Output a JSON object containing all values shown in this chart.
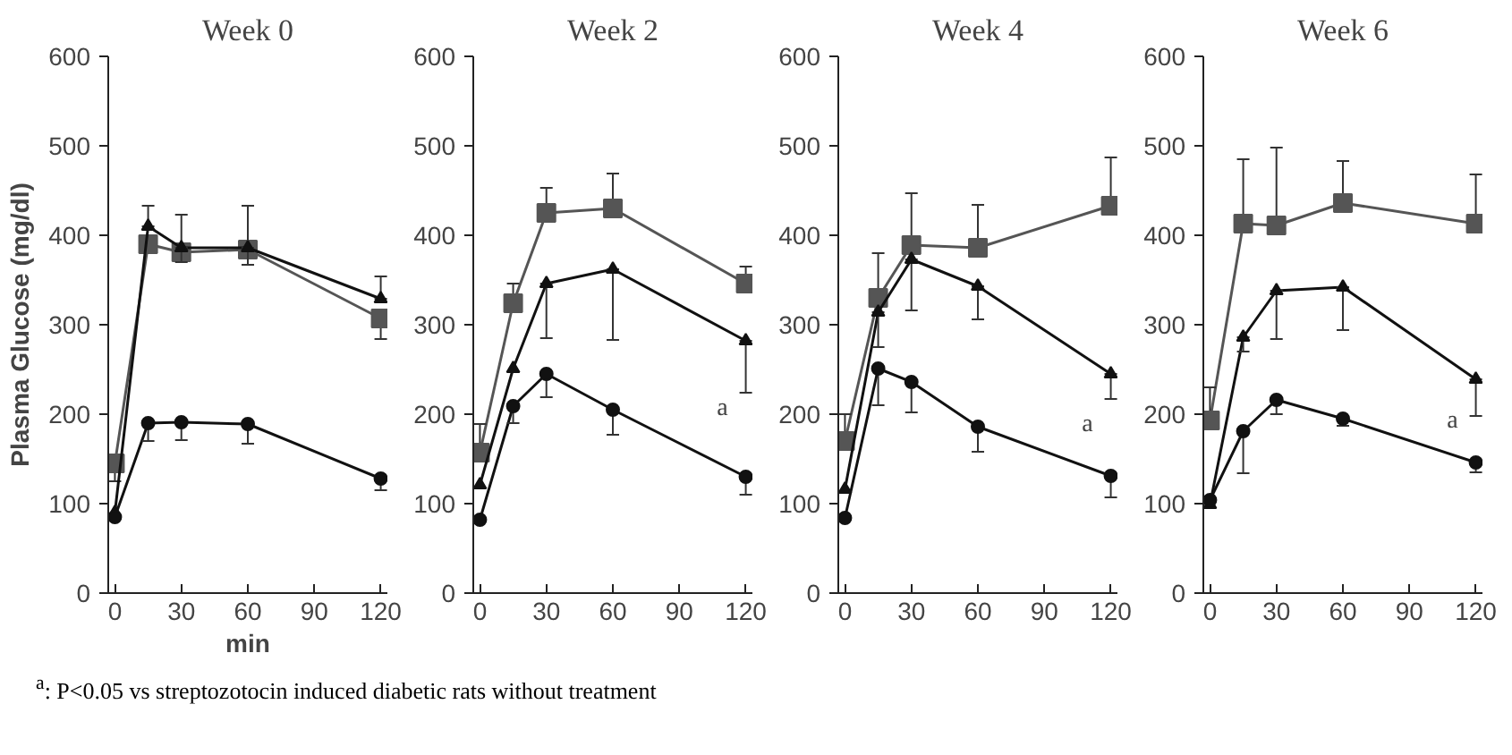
{
  "chart_data": [
    {
      "type": "line",
      "title": "Week 0",
      "xlabel": "min",
      "ylabel": "Plasma Glucose (mg/dl)",
      "x": [
        0,
        15,
        30,
        60,
        120
      ],
      "xlim": [
        -3,
        123
      ],
      "xticks": [
        0,
        30,
        60,
        90,
        120
      ],
      "ylim": [
        0,
        600
      ],
      "yticks": [
        0,
        100,
        200,
        300,
        400,
        500,
        600
      ],
      "grid": false,
      "line_style": "solid",
      "series": [
        {
          "color": "#555555",
          "marker": "square",
          "values": [
            145,
            390,
            381,
            384,
            307
          ],
          "errors": [
            [
              125,
              145
            ],
            null,
            [
              381,
              423
            ],
            [
              384,
              433
            ],
            [
              284,
              307
            ]
          ]
        },
        {
          "color": "#111111",
          "marker": "triangle",
          "values": [
            90,
            410,
            386,
            386,
            329
          ],
          "errors": [
            null,
            [
              410,
              433
            ],
            [
              370,
              386
            ],
            [
              367,
              386
            ],
            [
              329,
              354
            ]
          ]
        },
        {
          "color": "#111111",
          "marker": "circle",
          "values": [
            85,
            190,
            191,
            189,
            128
          ],
          "errors": [
            null,
            [
              170,
              190
            ],
            [
              171,
              191
            ],
            [
              167,
              189
            ],
            [
              115,
              128
            ]
          ]
        }
      ],
      "annotations": [
        "$^{a}$: P<0.05 vs streptozotocin induced diabetic rats without treatment"
      ]
    },
    {
      "type": "line",
      "title": "Week 2",
      "x": [
        0,
        15,
        30,
        60,
        120
      ],
      "xlim": [
        -3,
        123
      ],
      "xticks": [
        0,
        30,
        60,
        90,
        120
      ],
      "ylim": [
        0,
        600
      ],
      "yticks": [
        0,
        100,
        200,
        300,
        400,
        500,
        600
      ],
      "grid": false,
      "line_style": "solid",
      "series": [
        {
          "color": "#555555",
          "marker": "square",
          "values": [
            157,
            324,
            425,
            430,
            346
          ],
          "errors": [
            [
              157,
              189
            ],
            [
              324,
              346
            ],
            [
              425,
              453
            ],
            [
              430,
              469
            ],
            [
              346,
              365
            ]
          ]
        },
        {
          "color": "#111111",
          "marker": "triangle",
          "values": [
            121,
            251,
            346,
            362,
            282
          ],
          "errors": [
            null,
            null,
            [
              285,
              346
            ],
            [
              283,
              362
            ],
            [
              224,
              282
            ]
          ]
        },
        {
          "color": "#111111",
          "marker": "circle",
          "values": [
            82,
            209,
            245,
            205,
            130
          ],
          "errors": [
            null,
            [
              190,
              209
            ],
            [
              219,
              245
            ],
            [
              177,
              205
            ],
            [
              110,
              130
            ]
          ]
        }
      ],
      "annotations": [
        "a"
      ]
    },
    {
      "type": "line",
      "title": "Week 4",
      "x": [
        0,
        15,
        30,
        60,
        120
      ],
      "xlim": [
        -3,
        123
      ],
      "xticks": [
        0,
        30,
        60,
        90,
        120
      ],
      "ylim": [
        0,
        600
      ],
      "yticks": [
        0,
        100,
        200,
        300,
        400,
        500,
        600
      ],
      "grid": false,
      "line_style": "solid",
      "series": [
        {
          "color": "#555555",
          "marker": "square",
          "values": [
            170,
            330,
            389,
            386,
            433
          ],
          "errors": [
            [
              170,
              200
            ],
            [
              330,
              380
            ],
            [
              389,
              447
            ],
            [
              386,
              434
            ],
            [
              433,
              487
            ]
          ]
        },
        {
          "color": "#111111",
          "marker": "triangle",
          "values": [
            116,
            314,
            373,
            343,
            245
          ],
          "errors": [
            null,
            [
              275,
              314
            ],
            [
              316,
              373
            ],
            [
              306,
              343
            ],
            [
              217,
              245
            ]
          ]
        },
        {
          "color": "#111111",
          "marker": "circle",
          "values": [
            84,
            251,
            236,
            186,
            131
          ],
          "errors": [
            null,
            [
              210,
              251
            ],
            [
              202,
              236
            ],
            [
              158,
              186
            ],
            [
              107,
              131
            ]
          ]
        }
      ],
      "annotations": [
        "a"
      ]
    },
    {
      "type": "line",
      "title": "Week 6",
      "x": [
        0,
        15,
        30,
        60,
        120
      ],
      "xlim": [
        -3,
        123
      ],
      "xticks": [
        0,
        30,
        60,
        90,
        120
      ],
      "ylim": [
        0,
        600
      ],
      "yticks": [
        0,
        100,
        200,
        300,
        400,
        500,
        600
      ],
      "grid": false,
      "line_style": "solid",
      "series": [
        {
          "color": "#555555",
          "marker": "square",
          "values": [
            193,
            413,
            411,
            436,
            413
          ],
          "errors": [
            [
              193,
              230
            ],
            [
              413,
              485
            ],
            [
              411,
              498
            ],
            [
              436,
              483
            ],
            [
              413,
              468
            ]
          ]
        },
        {
          "color": "#111111",
          "marker": "triangle",
          "values": [
            99,
            286,
            338,
            342,
            239
          ],
          "errors": [
            null,
            [
              270,
              286
            ],
            [
              284,
              338
            ],
            [
              294,
              342
            ],
            [
              198,
              239
            ]
          ]
        },
        {
          "color": "#111111",
          "marker": "circle",
          "values": [
            104,
            181,
            216,
            195,
            146
          ],
          "errors": [
            null,
            [
              134,
              181
            ],
            [
              200,
              216
            ],
            [
              187,
              195
            ],
            [
              135,
              146
            ]
          ]
        }
      ],
      "annotations": [
        "a"
      ]
    }
  ]
}
